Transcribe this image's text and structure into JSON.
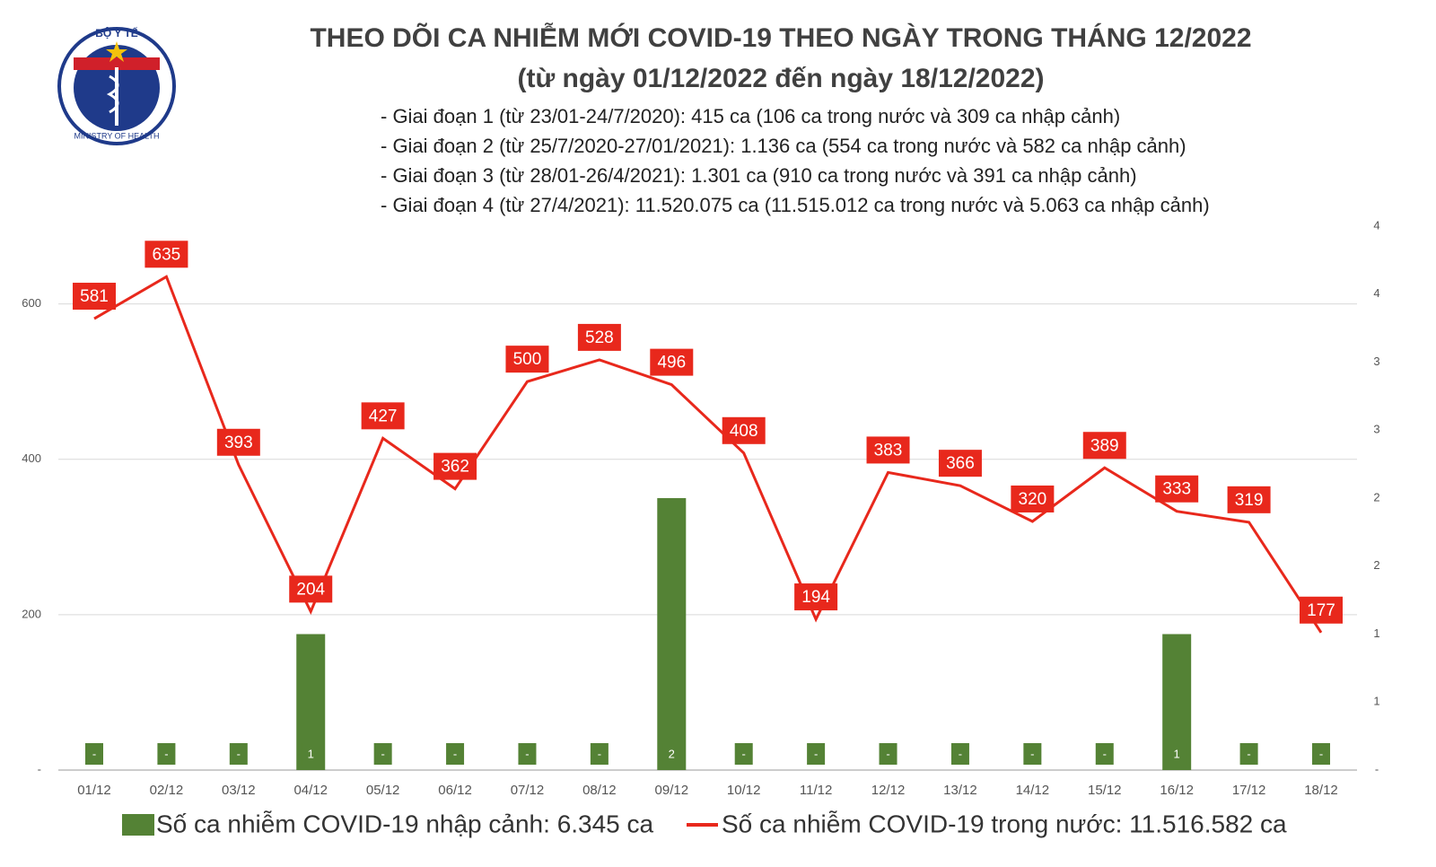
{
  "logo": {
    "top": "BỘ Y TẾ",
    "bottom": "MINISTRY OF HEALTH"
  },
  "chart_data": {
    "type": "bar-line",
    "title": "THEO DÕI CA NHIỄM MỚI COVID-19 THEO NGÀY TRONG THÁNG 12/2022",
    "subtitle": "(từ ngày 01/12/2022 đến ngày 18/12/2022)",
    "annotations": [
      "- Giai đoạn 1 (từ 23/01-24/7/2020): 415 ca (106 ca trong nước và 309 ca nhập cảnh)",
      "- Giai đoạn 2 (từ 25/7/2020-27/01/2021): 1.136 ca (554 ca trong nước và 582 ca nhập cảnh)",
      "- Giai đoạn 3 (từ 28/01-26/4/2021): 1.301 ca (910 ca trong nước và 391 ca nhập cảnh)",
      "- Giai đoạn 4 (từ 27/4/2021): 11.520.075 ca (11.515.012 ca trong nước và 5.063 ca nhập cảnh)"
    ],
    "categories": [
      "01/12",
      "02/12",
      "03/12",
      "04/12",
      "05/12",
      "06/12",
      "07/12",
      "08/12",
      "09/12",
      "10/12",
      "11/12",
      "12/12",
      "13/12",
      "14/12",
      "15/12",
      "16/12",
      "17/12",
      "18/12"
    ],
    "series": [
      {
        "name": "Số ca nhiễm COVID-19 nhập cảnh: 6.345 ca",
        "type": "bar",
        "axis": "y2",
        "color": "#548235",
        "values": [
          0,
          0,
          0,
          1,
          0,
          0,
          0,
          0,
          2,
          0,
          0,
          0,
          0,
          0,
          0,
          1,
          0,
          0
        ],
        "value_labels": [
          "-",
          "-",
          "-",
          "1",
          "-",
          "-",
          "-",
          "-",
          "2",
          "-",
          "-",
          "-",
          "-",
          "-",
          "-",
          "1",
          "-",
          "-"
        ]
      },
      {
        "name": "Số ca nhiễm COVID-19 trong nước: 11.516.582 ca",
        "type": "line",
        "color": "#e8281c",
        "values": [
          581,
          635,
          393,
          204,
          427,
          362,
          500,
          528,
          496,
          408,
          194,
          383,
          366,
          320,
          389,
          333,
          319,
          177
        ]
      }
    ],
    "ylim": [
      0,
      700
    ],
    "yticks": [
      {
        "value": 0,
        "label": "-"
      },
      200,
      400,
      600
    ],
    "y2lim": [
      0,
      4
    ],
    "y2ticks": [
      {
        "value": 0,
        "label": "-"
      },
      {
        "value": 0.5,
        "label": "1"
      },
      {
        "value": 1,
        "label": "1"
      },
      {
        "value": 1.5,
        "label": "2"
      },
      {
        "value": 2,
        "label": "2"
      },
      {
        "value": 2.5,
        "label": "3"
      },
      {
        "value": 3,
        "label": "3"
      },
      {
        "value": 3.5,
        "label": "4"
      },
      {
        "value": 4,
        "label": "4"
      }
    ],
    "grid": true
  }
}
